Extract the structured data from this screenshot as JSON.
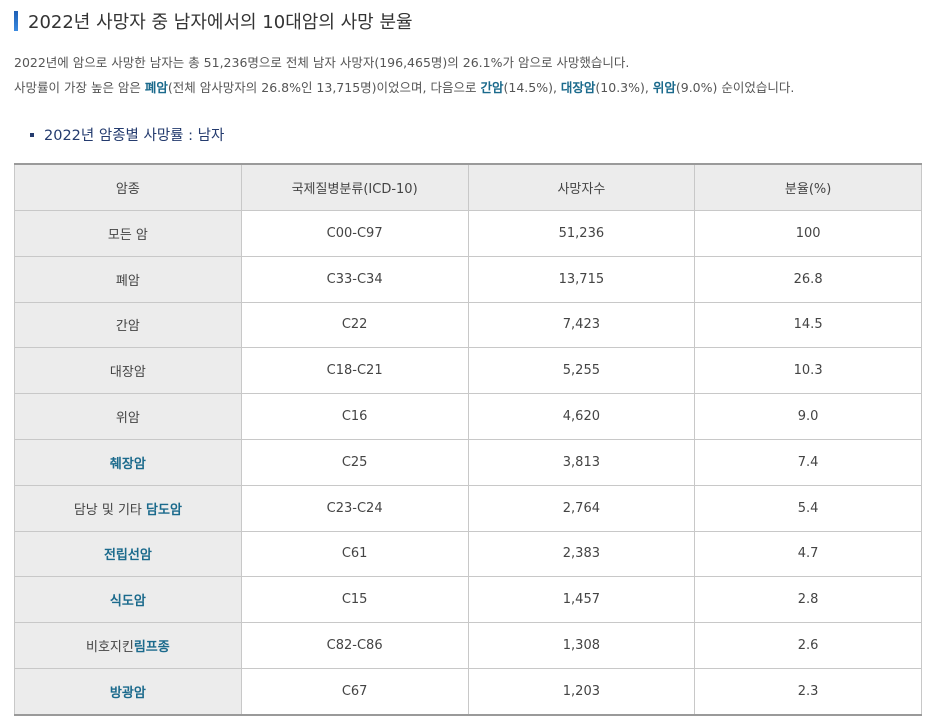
{
  "title": "2022년 사망자 중 남자에서의 10대암의 사망 분율",
  "para1": "2022년에 암으로 사망한 남자는 총 51,236명으로 전체 남자 사망자(196,465명)의 26.1%가 암으로 사망했습니다.",
  "para2": {
    "t1": "사망률이 가장 높은 암은 ",
    "h1": "폐암",
    "t2": "(전체 암사망자의 26.8%인 13,715명)이었으며, 다음으로 ",
    "h2": "간암",
    "t3": "(14.5%), ",
    "h3": "대장암",
    "t4": "(10.3%), ",
    "h4": "위암",
    "t5": "(9.0%) 순이었습니다."
  },
  "subtitle": "2022년 암종별 사망률 : 남자",
  "table": {
    "headers": [
      "암종",
      "국제질병분류(ICD-10)",
      "사망자수",
      "분율(%)"
    ],
    "rows": [
      {
        "plain": "모든 암",
        "link": "",
        "icd": "C00-C97",
        "deaths": "51,236",
        "pct": "100"
      },
      {
        "plain": "폐암",
        "link": "",
        "icd": "C33-C34",
        "deaths": "13,715",
        "pct": "26.8"
      },
      {
        "plain": "간암",
        "link": "",
        "icd": "C22",
        "deaths": "7,423",
        "pct": "14.5"
      },
      {
        "plain": "대장암",
        "link": "",
        "icd": "C18-C21",
        "deaths": "5,255",
        "pct": "10.3"
      },
      {
        "plain": "위암",
        "link": "",
        "icd": "C16",
        "deaths": "4,620",
        "pct": "9.0"
      },
      {
        "plain": "",
        "link": "췌장암",
        "icd": "C25",
        "deaths": "3,813",
        "pct": "7.4"
      },
      {
        "plain": "담낭 및 기타 ",
        "link": "담도암",
        "icd": "C23-C24",
        "deaths": "2,764",
        "pct": "5.4"
      },
      {
        "plain": "",
        "link": "전립선암",
        "icd": "C61",
        "deaths": "2,383",
        "pct": "4.7"
      },
      {
        "plain": "",
        "link": "식도암",
        "icd": "C15",
        "deaths": "1,457",
        "pct": "2.8"
      },
      {
        "plain": "비호지킨",
        "link": "림프종",
        "icd": "C82-C86",
        "deaths": "1,308",
        "pct": "2.6"
      },
      {
        "plain": "",
        "link": "방광암",
        "icd": "C67",
        "deaths": "1,203",
        "pct": "2.3"
      }
    ]
  },
  "colors": {
    "accent": "#1b6a8c",
    "heading": "#243b6e"
  }
}
